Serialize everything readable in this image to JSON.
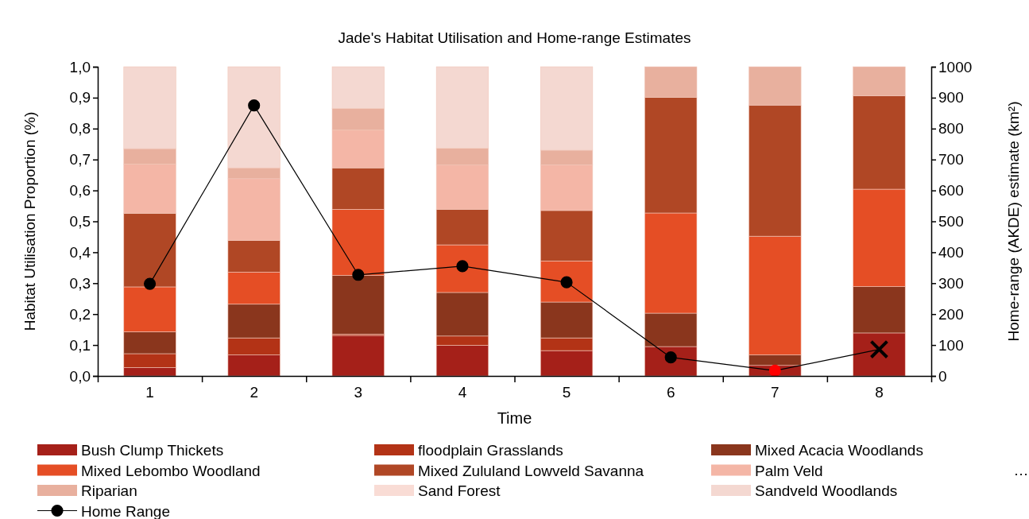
{
  "chart_data": {
    "type": "bar",
    "stacked": true,
    "title": "Jade's Habitat Utilisation and Home-range Estimates",
    "xlabel": "Time",
    "ylabel": "Habitat Utilisation Proportion (%)",
    "y2label": "Home-range (AKDE) estimate (km²)",
    "categories": [
      "1",
      "2",
      "3",
      "4",
      "5",
      "6",
      "7",
      "8"
    ],
    "ylim": [
      0,
      1
    ],
    "yticks": [
      {
        "value": 0,
        "label": "0,0"
      },
      {
        "value": 0.1,
        "label": "0,1"
      },
      {
        "value": 0.2,
        "label": "0,2"
      },
      {
        "value": 0.3,
        "label": "0,3"
      },
      {
        "value": 0.4,
        "label": "0,4"
      },
      {
        "value": 0.5,
        "label": "0,5"
      },
      {
        "value": 0.6,
        "label": "0,6"
      },
      {
        "value": 0.7,
        "label": "0,7"
      },
      {
        "value": 0.8,
        "label": "0,8"
      },
      {
        "value": 0.9,
        "label": "0,9"
      },
      {
        "value": 1,
        "label": "1,0"
      }
    ],
    "y2lim": [
      0,
      1000
    ],
    "y2ticks": [
      0,
      100,
      200,
      300,
      400,
      500,
      600,
      700,
      800,
      900,
      1000
    ],
    "legend": "bottom",
    "grid": false,
    "annotations": [
      "…"
    ],
    "series": [
      {
        "name": "Bush Clump Thickets",
        "color": "#a52019",
        "values": [
          0.027,
          0.068,
          0.131,
          0.099,
          0.082,
          0.095,
          0.034,
          0.139
        ]
      },
      {
        "name": "floodplain Grasslands",
        "color": "#b33316",
        "values": [
          0.045,
          0.055,
          0.004,
          0.03,
          0.041,
          0,
          0,
          0
        ]
      },
      {
        "name": "Mixed Acacia Woodlands",
        "color": "#8a361d",
        "values": [
          0.071,
          0.109,
          0.19,
          0.141,
          0.116,
          0.108,
          0.034,
          0.15
        ]
      },
      {
        "name": "Mixed Lebombo Woodland",
        "color": "#e54e25",
        "values": [
          0.145,
          0.104,
          0.214,
          0.154,
          0.133,
          0.324,
          0.384,
          0.315
        ]
      },
      {
        "name": "Mixed Zululand Lowveld Savanna",
        "color": "#b04725",
        "values": [
          0.238,
          0.102,
          0.134,
          0.115,
          0.163,
          0.374,
          0.424,
          0.302
        ]
      },
      {
        "name": "Palm Veld",
        "color": "#f4b6a6",
        "values": [
          0.159,
          0.2,
          0.122,
          0.143,
          0.148,
          0,
          0,
          0
        ]
      },
      {
        "name": "Riparian",
        "color": "#e8b09e",
        "values": [
          0.05,
          0.035,
          0.07,
          0.054,
          0.047,
          0.099,
          0.124,
          0.094
        ]
      },
      {
        "name": "Sand Forest",
        "color": "#f9dcd5",
        "values": [
          0,
          0,
          0,
          0,
          0,
          0,
          0,
          0
        ]
      },
      {
        "name": "Sandveld Woodlands",
        "color": "#f4d8d1",
        "values": [
          0.265,
          0.327,
          0.135,
          0.264,
          0.27,
          0,
          0,
          0
        ]
      },
      {
        "name": "Home Range",
        "type": "line",
        "axis": "y2",
        "color": "#000000",
        "colors": [
          "#000000",
          "#000000",
          "#000000",
          "#000000",
          "#000000",
          "#000000",
          "#ff0000",
          null
        ],
        "marker": "circle",
        "values": [
          298,
          875,
          327,
          355,
          303,
          60,
          17,
          86
        ]
      },
      {
        "type": "scatter",
        "axis": "y2",
        "color": "#000000",
        "marker": "cross",
        "x": [
          "8"
        ],
        "values": [
          86
        ]
      }
    ]
  }
}
